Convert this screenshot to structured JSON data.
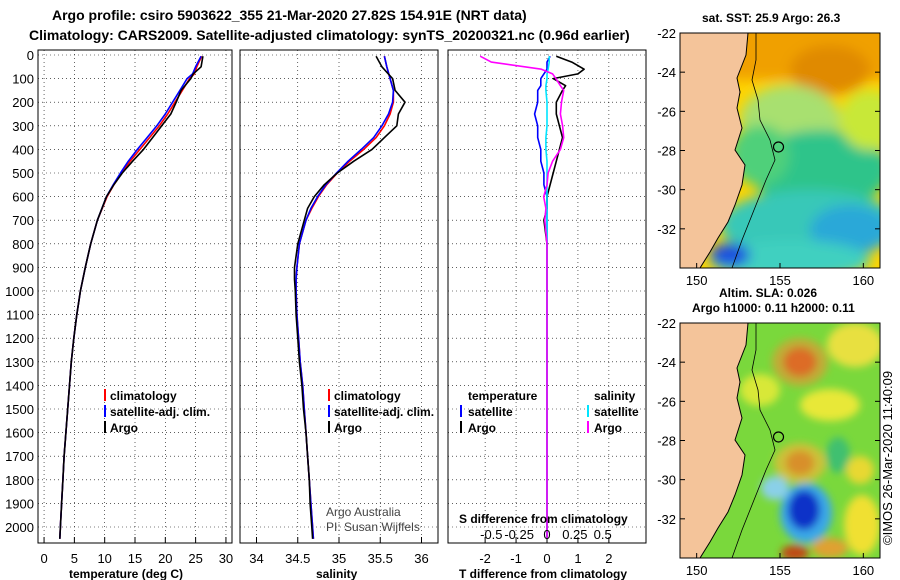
{
  "header": {
    "line1": "Argo profile: csiro 5903622_355 21-Mar-2020 27.82S 154.91E (NRT data)",
    "line2": "Climatology: CARS2009. Satellite-adjusted climatology: synTS_20200321.nc (0.96d earlier)"
  },
  "colors": {
    "argo": "#000000",
    "climatology": "#ff0000",
    "satellite": "#0000ff",
    "sat_salinity": "#00e5ff",
    "argo_salinity": "#ff00ff",
    "land": "#f4c49a"
  },
  "depth_ticks": [
    "0",
    "100",
    "200",
    "300",
    "400",
    "500",
    "600",
    "700",
    "800",
    "900",
    "1000",
    "1100",
    "1200",
    "1300",
    "1400",
    "1500",
    "1600",
    "1700",
    "1800",
    "1900",
    "2000"
  ],
  "chart_data": [
    {
      "type": "line",
      "name": "temperature",
      "xlabel": "temperature (deg C)",
      "ylabel": "depth",
      "xlim": [
        -1,
        31
      ],
      "ylim": [
        2080,
        0
      ],
      "x_ticks": [
        "0",
        "5",
        "10",
        "15",
        "20",
        "25",
        "30"
      ],
      "grid": true,
      "legend": [
        "climatology",
        "satellite-adj. clim.",
        "Argo"
      ],
      "depth": [
        5,
        50,
        80,
        100,
        150,
        200,
        250,
        300,
        350,
        400,
        450,
        500,
        550,
        600,
        700,
        800,
        900,
        1000,
        1100,
        1200,
        1300,
        1400,
        1500,
        1600,
        1700,
        1800,
        1900,
        2000,
        2050
      ],
      "series": [
        {
          "name": "climatology",
          "color": "#ff0000",
          "values": [
            26.0,
            25.2,
            24.8,
            24.0,
            22.8,
            21.6,
            20.4,
            19.0,
            17.4,
            15.8,
            14.2,
            12.8,
            11.5,
            10.4,
            8.8,
            7.7,
            6.8,
            6.0,
            5.4,
            4.9,
            4.5,
            4.2,
            3.9,
            3.6,
            3.3,
            3.1,
            2.9,
            2.7,
            2.6
          ]
        },
        {
          "name": "satellite-adj. clim.",
          "color": "#0000ff",
          "values": [
            25.9,
            25.0,
            24.5,
            23.6,
            22.4,
            21.2,
            20.0,
            18.6,
            17.0,
            15.4,
            13.9,
            12.6,
            11.4,
            10.3,
            8.8,
            7.7,
            6.8,
            6.0,
            5.4,
            4.9,
            4.5,
            4.2,
            3.9,
            3.6,
            3.3,
            3.1,
            2.9,
            2.7,
            2.6
          ]
        },
        {
          "name": "Argo",
          "color": "#000000",
          "values": [
            26.2,
            25.9,
            24.6,
            24.2,
            22.6,
            21.8,
            20.9,
            19.4,
            17.9,
            16.4,
            14.6,
            12.9,
            11.5,
            10.3,
            8.8,
            7.7,
            6.8,
            6.0,
            5.4,
            4.9,
            4.5,
            4.2,
            3.9,
            3.6,
            3.3,
            3.1,
            2.9,
            2.7,
            2.6
          ]
        }
      ]
    },
    {
      "type": "line",
      "name": "salinity",
      "xlabel": "salinity",
      "ylabel": "depth",
      "xlim": [
        33.8,
        36.2
      ],
      "ylim": [
        2080,
        0
      ],
      "x_ticks": [
        "34",
        "34.5",
        "35",
        "35.5",
        "36"
      ],
      "grid": true,
      "legend": [
        "climatology",
        "satellite-adj. clim.",
        "Argo"
      ],
      "annotation": [
        "Argo Australia",
        "PI: Susan Wijffels"
      ],
      "depth": [
        5,
        50,
        100,
        150,
        200,
        250,
        300,
        350,
        400,
        450,
        500,
        550,
        600,
        650,
        700,
        800,
        900,
        950,
        1000,
        1100,
        1200,
        1300,
        1400,
        1500,
        1600,
        1700,
        1800,
        1900,
        2000,
        2050
      ],
      "series": [
        {
          "name": "climatology",
          "color": "#ff0000",
          "values": [
            35.55,
            35.58,
            35.62,
            35.66,
            35.66,
            35.62,
            35.55,
            35.45,
            35.3,
            35.13,
            34.98,
            34.85,
            34.75,
            34.67,
            34.6,
            34.52,
            34.49,
            34.48,
            34.48,
            34.49,
            34.51,
            34.53,
            34.56,
            34.58,
            34.6,
            34.62,
            34.64,
            34.66,
            34.68,
            34.69
          ]
        },
        {
          "name": "satellite-adj. clim.",
          "color": "#0000ff",
          "values": [
            35.55,
            35.58,
            35.62,
            35.66,
            35.65,
            35.6,
            35.52,
            35.42,
            35.27,
            35.11,
            34.97,
            34.84,
            34.74,
            34.66,
            34.6,
            34.52,
            34.49,
            34.48,
            34.48,
            34.49,
            34.51,
            34.53,
            34.56,
            34.58,
            34.6,
            34.62,
            34.64,
            34.66,
            34.68,
            34.69
          ]
        },
        {
          "name": "Argo",
          "color": "#000000",
          "values": [
            35.45,
            35.52,
            35.65,
            35.68,
            35.8,
            35.72,
            35.7,
            35.55,
            35.4,
            35.18,
            34.98,
            34.82,
            34.7,
            34.62,
            34.58,
            34.5,
            34.46,
            34.46,
            34.47,
            34.48,
            34.5,
            34.52,
            34.55,
            34.57,
            34.6,
            34.62,
            34.64,
            34.65,
            34.67,
            34.68
          ]
        }
      ]
    },
    {
      "type": "line",
      "name": "differences",
      "xlabel": "T difference from climatology",
      "ylabel": "depth",
      "xlim": [
        -3.2,
        3.2
      ],
      "ylim": [
        2080,
        0
      ],
      "x_ticks": [
        "-2",
        "-1",
        "0",
        "1",
        "2"
      ],
      "x_ticks_salinity": [
        "-0.5",
        "-0.25",
        "0",
        "0.25",
        "0.5"
      ],
      "s_axis_label": "S difference from climatology",
      "grid": true,
      "legend_headers": [
        "temperature",
        "salinity"
      ],
      "legend": [
        "satellite",
        "Argo",
        "satellite",
        "Argo"
      ],
      "depth": [
        5,
        30,
        60,
        80,
        100,
        130,
        150,
        200,
        250,
        300,
        350,
        400,
        450,
        500,
        550,
        600,
        650,
        700,
        800,
        900,
        1000,
        1100,
        1200,
        1300,
        1400,
        1500,
        1600,
        1700,
        1800,
        1900,
        2000,
        2050
      ],
      "series": [
        {
          "name": "temperature satellite",
          "color": "#0000ff",
          "values": [
            0.1,
            0.0,
            0.0,
            -0.1,
            -0.2,
            -0.2,
            -0.3,
            -0.3,
            -0.4,
            -0.3,
            -0.3,
            -0.2,
            -0.2,
            -0.1,
            -0.1,
            0.0,
            0.0,
            0.0,
            0.0,
            0.0,
            0.0,
            0.0,
            0.0,
            0.0,
            0.0,
            0.0,
            0.0,
            0.0,
            0.0,
            0.0,
            0.0,
            0.0
          ]
        },
        {
          "name": "temperature Argo",
          "color": "#000000",
          "values": [
            0.3,
            0.8,
            1.2,
            1.0,
            0.2,
            0.6,
            0.5,
            0.3,
            0.3,
            0.4,
            0.5,
            0.4,
            0.3,
            0.2,
            0.1,
            0.0,
            0.0,
            -0.1,
            0.0,
            0.0,
            0.0,
            0.0,
            0.0,
            0.0,
            0.0,
            0.0,
            0.0,
            0.0,
            0.0,
            0.0,
            0.0,
            0.0
          ]
        },
        {
          "name": "salinity satellite",
          "color": "#00e5ff",
          "values": [
            0.02,
            0.02,
            0.01,
            0.0,
            0.0,
            -0.01,
            -0.01,
            0.0,
            0.0,
            0.0,
            -0.01,
            -0.01,
            0.0,
            0.0,
            0.0,
            0.0,
            0.0,
            0.0,
            0.0,
            0.0,
            0.0,
            0.0,
            0.0,
            0.0,
            0.0,
            0.0,
            0.0,
            0.0,
            0.0,
            0.0,
            0.0,
            0.0
          ]
        },
        {
          "name": "salinity Argo",
          "color": "#ff00ff",
          "values": [
            -0.6,
            -0.5,
            -0.05,
            0.05,
            0.08,
            0.12,
            0.15,
            0.13,
            0.12,
            0.14,
            0.15,
            0.12,
            0.05,
            0.01,
            0.0,
            -0.03,
            -0.01,
            -0.02,
            0.0,
            0.0,
            0.0,
            0.0,
            0.0,
            0.0,
            0.0,
            0.0,
            0.0,
            0.0,
            0.0,
            0.0,
            0.0,
            0.0
          ]
        }
      ]
    },
    {
      "type": "heatmap",
      "name": "sst-map",
      "title": "sat. SST: 25.9 Argo: 26.3",
      "x_ticks": [
        "150",
        "155",
        "160"
      ],
      "y_ticks": [
        "-22",
        "-24",
        "-26",
        "-28",
        "-30",
        "-32"
      ],
      "xlim": [
        149,
        161
      ],
      "ylim": [
        -34,
        -22
      ],
      "float_position": [
        154.91,
        -27.82
      ]
    },
    {
      "type": "heatmap",
      "name": "sla-map",
      "title": "Altim. SLA: 0.026",
      "subtitle": "Argo h1000: 0.11 h2000: 0.11",
      "x_ticks": [
        "150",
        "155",
        "160"
      ],
      "y_ticks": [
        "-22",
        "-24",
        "-26",
        "-28",
        "-30",
        "-32"
      ],
      "xlim": [
        149,
        161
      ],
      "ylim": [
        -34,
        -22
      ],
      "float_position": [
        154.91,
        -27.82
      ]
    }
  ],
  "footer": {
    "credit": "©IMOS 26-Mar-2020 11:40:09"
  }
}
